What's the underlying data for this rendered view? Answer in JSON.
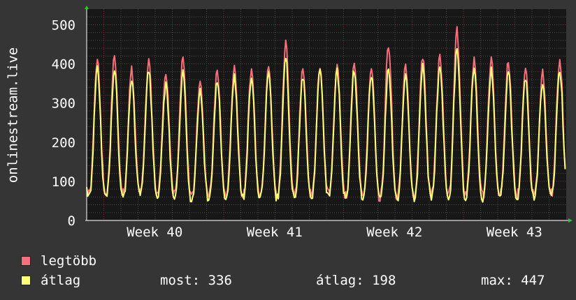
{
  "chart_data": {
    "type": "line",
    "title": "",
    "ylabel": "onlinestream.live",
    "xlabel": "",
    "ylim": [
      0,
      540
    ],
    "y_ticks": [
      "0",
      "100",
      "200",
      "300",
      "400",
      "500"
    ],
    "x_ticks": [
      "Week 40",
      "Week 41",
      "Week 42",
      "Week 43"
    ],
    "grid": true,
    "days": 28,
    "series": [
      {
        "name": "legtöbb",
        "color": "#f4707a",
        "daily_peak": [
          415,
          415,
          385,
          405,
          375,
          415,
          350,
          385,
          390,
          385,
          395,
          455,
          390,
          400,
          400,
          410,
          395,
          450,
          400,
          415,
          420,
          490,
          410,
          410,
          405,
          390,
          380,
          410
        ],
        "daily_min": [
          70,
          65,
          70,
          75,
          70,
          65,
          60,
          65,
          70,
          65,
          70,
          60,
          65,
          70,
          70,
          65,
          70,
          60,
          60,
          65,
          70,
          65,
          70,
          65,
          70,
          65,
          70,
          70
        ]
      },
      {
        "name": "átlag",
        "color": "#ffff7a",
        "daily_peak": [
          385,
          390,
          360,
          385,
          345,
          375,
          330,
          360,
          370,
          365,
          375,
          415,
          365,
          385,
          380,
          385,
          375,
          390,
          375,
          390,
          395,
          440,
          385,
          385,
          380,
          365,
          355,
          385
        ],
        "daily_min": [
          60,
          58,
          62,
          68,
          62,
          58,
          55,
          58,
          62,
          58,
          62,
          55,
          58,
          62,
          62,
          58,
          62,
          55,
          55,
          58,
          62,
          58,
          62,
          58,
          62,
          58,
          62,
          62
        ]
      }
    ],
    "legend": {
      "items": [
        "legtöbb",
        "átlag"
      ],
      "stats": {
        "now_label": "most:",
        "now_value": "336",
        "avg_label": "átlag:",
        "avg_value": "198",
        "max_label": "max:",
        "max_value": "447"
      }
    }
  }
}
